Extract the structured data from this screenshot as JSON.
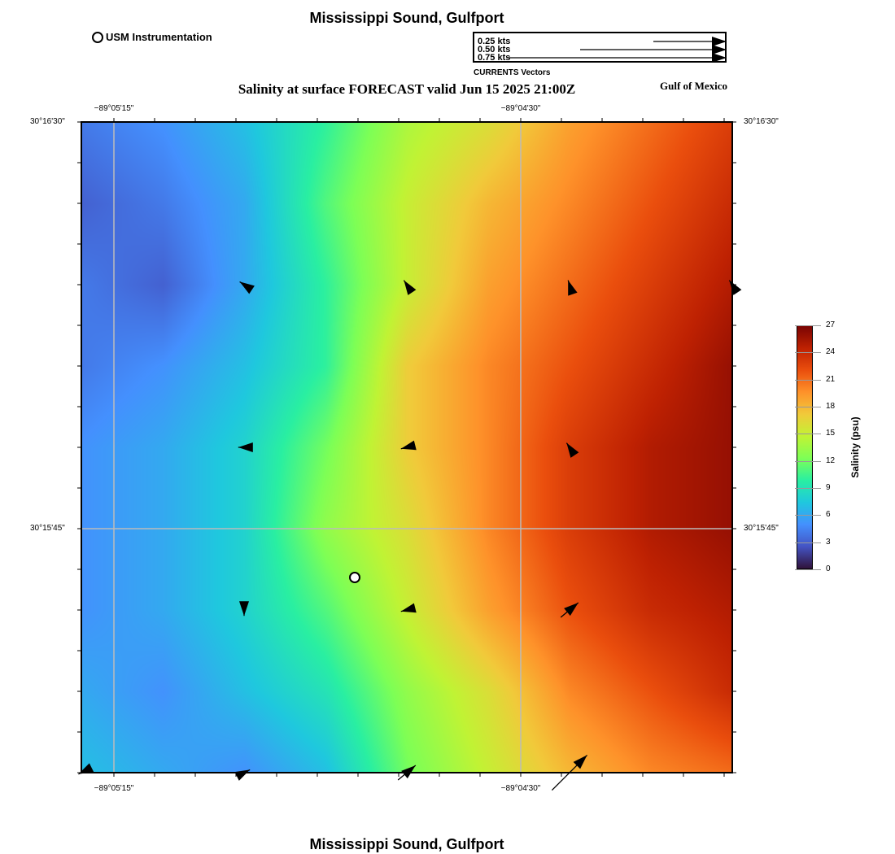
{
  "header": {
    "title": "Mississippi Sound, Gulfport",
    "footer": "Mississippi Sound, Gulfport",
    "station_legend": "USM Instrumentation",
    "region": "Gulf of Mexico"
  },
  "vector_legend": {
    "title": "CURRENTS Vectors",
    "entries": [
      {
        "label": "0.25 kts",
        "speed": 0.25
      },
      {
        "label": "0.50 kts",
        "speed": 0.5
      },
      {
        "label": "0.75 kts",
        "speed": 0.75
      }
    ]
  },
  "chart_data": {
    "type": "heatmap",
    "title": "Salinity at surface FORECAST valid Jun 15 2025 21:00Z",
    "colorbar": {
      "label": "Salinity (psu)",
      "range": [
        0,
        27
      ],
      "ticks": [
        "0",
        "3",
        "6",
        "9",
        "12",
        "15",
        "18",
        "21",
        "24",
        "27"
      ]
    },
    "x_ticks": [
      {
        "label": "−89°05'15\"",
        "sec": 15
      },
      {
        "label": "−89°04'30\"",
        "sec": 60
      }
    ],
    "y_ticks": [
      {
        "label": "30°16'30\"",
        "sec": 0
      },
      {
        "label": "30°15'45\"",
        "sec": 45
      }
    ],
    "salinity": [
      [
        4,
        5,
        7,
        10,
        14,
        16,
        19,
        21,
        23
      ],
      [
        3,
        4,
        6,
        11,
        15,
        18,
        20,
        22,
        24
      ],
      [
        4,
        3,
        6,
        10,
        15,
        19,
        21,
        23,
        25
      ],
      [
        4,
        5,
        7,
        10,
        17,
        20,
        22,
        24,
        26
      ],
      [
        5,
        6,
        8,
        12,
        17,
        20,
        23,
        25,
        26
      ],
      [
        5,
        6,
        8,
        13,
        16,
        20,
        23,
        25,
        26
      ],
      [
        5,
        6,
        8,
        11,
        15,
        19,
        22,
        24,
        25
      ],
      [
        6,
        5,
        7,
        9,
        13,
        16,
        20,
        22,
        24
      ],
      [
        7,
        6,
        5,
        7,
        12,
        15,
        18,
        20,
        21
      ]
    ],
    "vectors": [
      {
        "col": 2,
        "row": 2,
        "u": -0.03,
        "v": 0.02
      },
      {
        "col": 4,
        "row": 2,
        "u": -0.02,
        "v": 0.03
      },
      {
        "col": 6,
        "row": 2,
        "u": -0.01,
        "v": 0.03
      },
      {
        "col": 8,
        "row": 2,
        "u": -0.02,
        "v": 0.03
      },
      {
        "col": 2,
        "row": 4,
        "u": -0.04,
        "v": 0.0
      },
      {
        "col": 4,
        "row": 4,
        "u": -0.04,
        "v": -0.01
      },
      {
        "col": 6,
        "row": 4,
        "u": -0.02,
        "v": 0.03
      },
      {
        "col": 2,
        "row": 6,
        "u": 0.0,
        "v": -0.04
      },
      {
        "col": 4,
        "row": 6,
        "u": -0.04,
        "v": -0.01
      },
      {
        "col": 6,
        "row": 6,
        "u": 0.06,
        "v": 0.05
      },
      {
        "col": 0,
        "row": 8,
        "u": -0.02,
        "v": -0.01
      },
      {
        "col": 2,
        "row": 8,
        "u": 0.04,
        "v": 0.02
      },
      {
        "col": 4,
        "row": 8,
        "u": 0.06,
        "v": 0.05
      },
      {
        "col": 6,
        "row": 8,
        "u": 0.12,
        "v": 0.12
      }
    ],
    "station": {
      "col": 3.36,
      "row": 5.6
    }
  }
}
